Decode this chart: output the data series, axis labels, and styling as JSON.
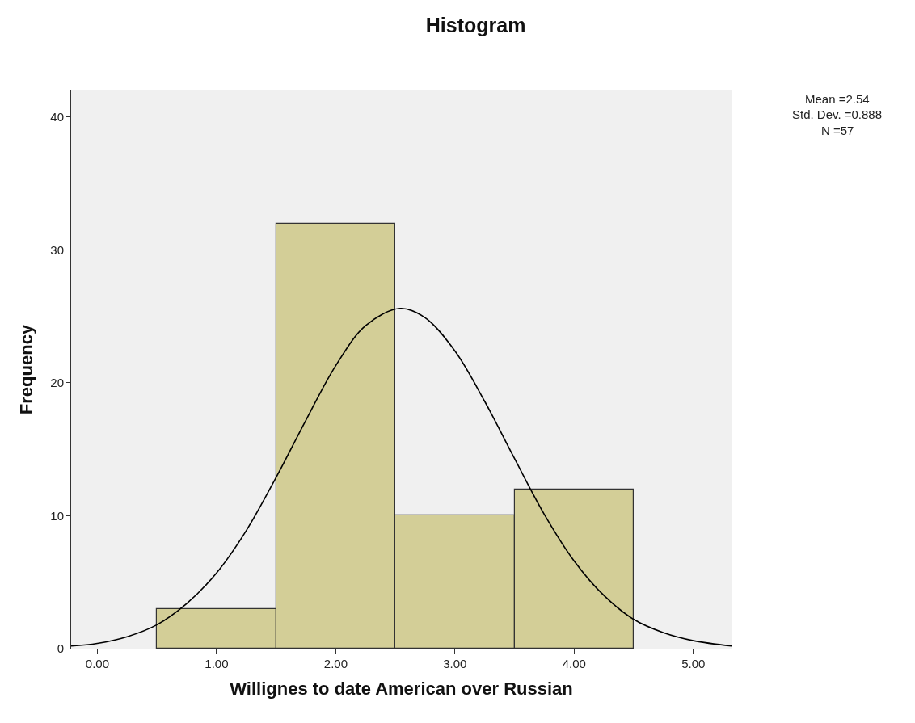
{
  "chart_data": {
    "type": "histogram",
    "title": "Histogram",
    "xlabel": "Willignes to date American over Russian",
    "ylabel": "Frequency",
    "bins": [
      0.5,
      1.5,
      2.5,
      3.5,
      4.5
    ],
    "values": [
      3,
      32,
      10,
      12
    ],
    "color": "#d3ce97",
    "series": [
      {
        "type": "line",
        "color": "#000000",
        "x": [
          -0.22,
          0,
          0.25,
          0.5,
          0.75,
          1.0,
          1.25,
          1.5,
          1.75,
          2.0,
          2.25,
          2.54,
          2.75,
          3.0,
          3.25,
          3.5,
          3.75,
          4.0,
          4.25,
          4.5,
          4.75,
          5.0,
          5.32
        ],
        "values": [
          0.2,
          0.4,
          0.9,
          1.8,
          3.4,
          5.7,
          8.9,
          12.9,
          17.2,
          21.3,
          24.3,
          25.6,
          24.9,
          22.4,
          18.6,
          14.3,
          10.1,
          6.6,
          4.0,
          2.2,
          1.2,
          0.6,
          0.2
        ]
      }
    ],
    "xlim": [
      -0.22,
      5.32
    ],
    "xticks": [
      {
        "value": 0,
        "label": "0.00"
      },
      {
        "value": 1,
        "label": "1.00"
      },
      {
        "value": 2,
        "label": "2.00"
      },
      {
        "value": 3,
        "label": "3.00"
      },
      {
        "value": 4,
        "label": "4.00"
      },
      {
        "value": 5,
        "label": "5.00"
      }
    ],
    "ylim": [
      0,
      42
    ],
    "yticks": [
      0,
      10,
      20,
      30,
      40
    ],
    "annotations": [
      "Mean =2.54",
      "Std. Dev. =0.888",
      "N =57"
    ],
    "grid": false
  }
}
